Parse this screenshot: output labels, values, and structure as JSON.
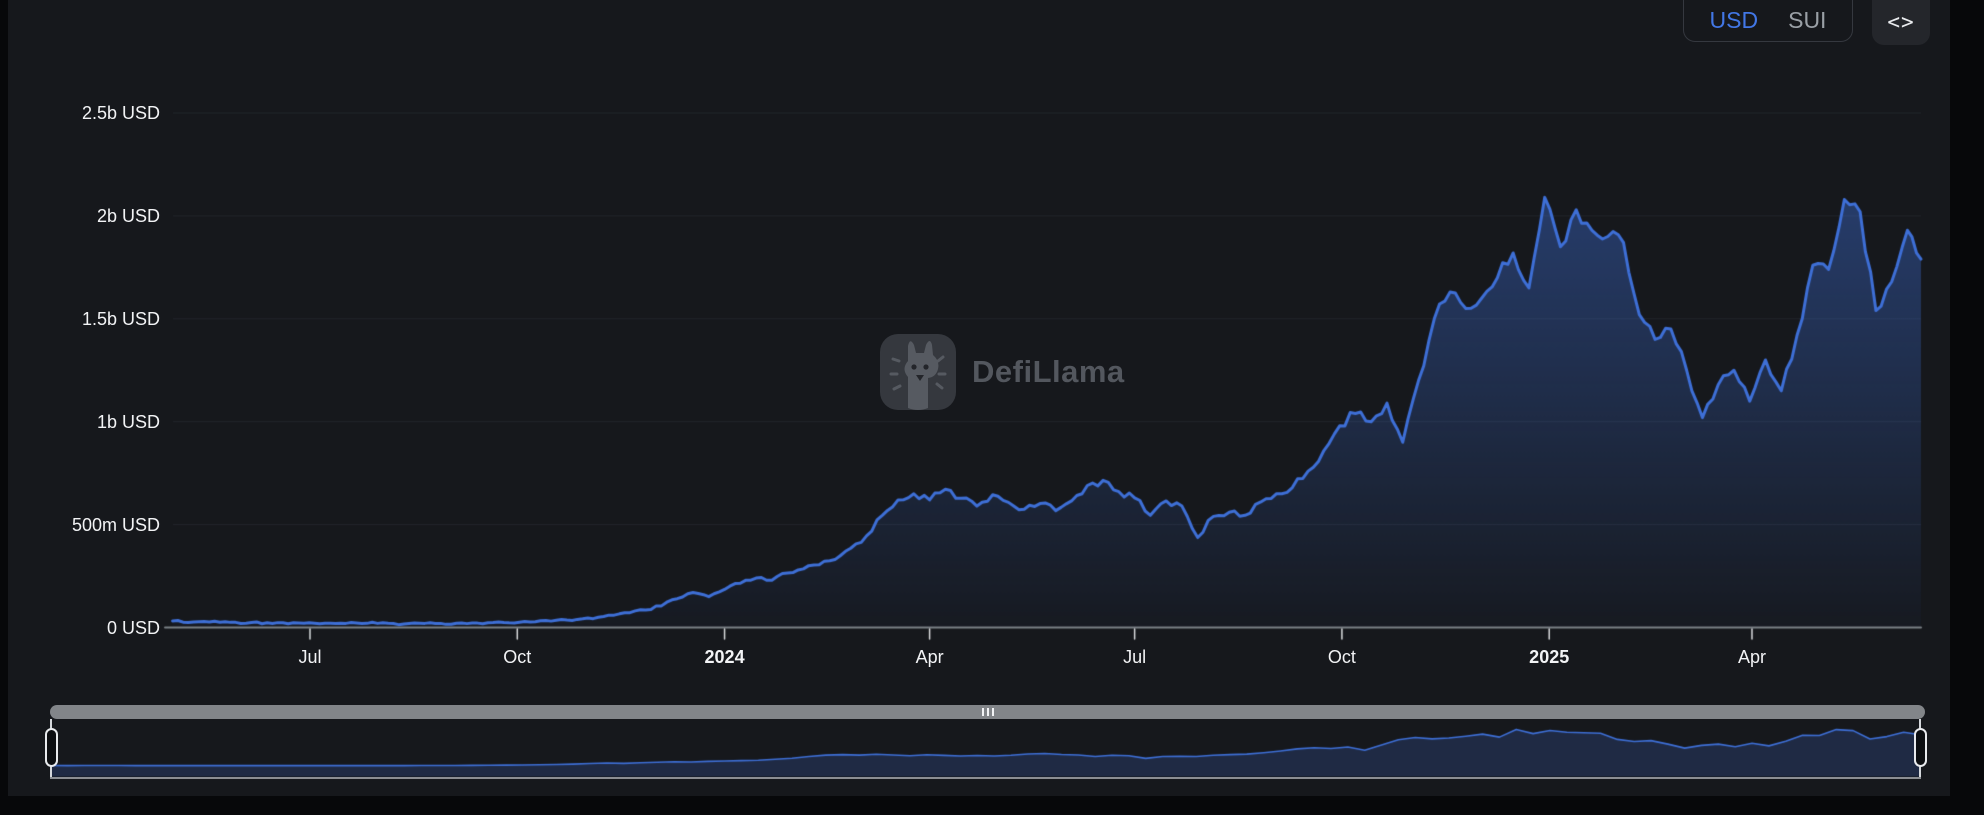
{
  "controls": {
    "usd_label": "USD",
    "sui_label": "SUI",
    "selected_unit": "USD",
    "code_icon": "<>"
  },
  "watermark": {
    "text": "DefiLlama"
  },
  "colors": {
    "accent": "#3e6fd6",
    "fill_rgb": "62,111,214",
    "selected_unit": "#4277e6",
    "unselected_unit": "#9aa0a6",
    "card_bg": "#16181c",
    "page_bg": "#07080a",
    "grid": "#23262c",
    "axis": "#7b8086",
    "tick": "#d9dbde",
    "label": "#f2f3f5"
  },
  "chart_data": {
    "type": "area",
    "unit": "USD",
    "grid": "horizontal",
    "legend": "none",
    "ylim_musd": [
      0,
      2650
    ],
    "x_span_days": [
      0,
      777
    ],
    "y_ticks": [
      {
        "v": 0,
        "label": "0 USD"
      },
      {
        "v": 500,
        "label": "500m USD"
      },
      {
        "v": 1000,
        "label": "1b USD"
      },
      {
        "v": 1500,
        "label": "1.5b USD"
      },
      {
        "v": 2000,
        "label": "2b USD"
      },
      {
        "v": 2500,
        "label": "2.5b USD"
      }
    ],
    "x_ticks": [
      {
        "day": 61,
        "label": "Jul",
        "bold": false
      },
      {
        "day": 153,
        "label": "Oct",
        "bold": false
      },
      {
        "day": 245,
        "label": "2024",
        "bold": true
      },
      {
        "day": 336,
        "label": "Apr",
        "bold": false
      },
      {
        "day": 427,
        "label": "Jul",
        "bold": false
      },
      {
        "day": 519,
        "label": "Oct",
        "bold": false
      },
      {
        "day": 611,
        "label": "2025",
        "bold": true
      },
      {
        "day": 701,
        "label": "Apr",
        "bold": false
      }
    ],
    "series": {
      "sampling_days": 7,
      "values_musd": [
        32,
        24,
        29,
        26,
        25,
        24,
        23,
        23,
        22,
        21,
        21,
        20,
        20,
        20,
        19,
        19,
        20,
        20,
        21,
        22,
        23,
        24,
        26,
        28,
        31,
        36,
        42,
        50,
        60,
        72,
        85,
        105,
        140,
        170,
        150,
        185,
        215,
        240,
        230,
        265,
        285,
        305,
        330,
        385,
        445,
        545,
        620,
        650,
        620,
        672,
        628,
        590,
        645,
        608,
        575,
        602,
        568,
        615,
        690,
        715,
        660,
        630,
        545,
        615,
        590,
        437,
        540,
        560,
        545,
        610,
        650,
        680,
        760,
        860,
        980,
        1040,
        1000,
        1090,
        900,
        1200,
        1500,
        1630,
        1550,
        1600,
        1700,
        1820,
        1650,
        2090,
        1850,
        2030,
        1930,
        1900,
        1870,
        1520,
        1400,
        1450,
        1250,
        1020,
        1180,
        1250,
        1100,
        1300,
        1150,
        1420,
        1760,
        1740,
        2080,
        2020,
        1540,
        1680,
        1930,
        1790
      ]
    }
  }
}
